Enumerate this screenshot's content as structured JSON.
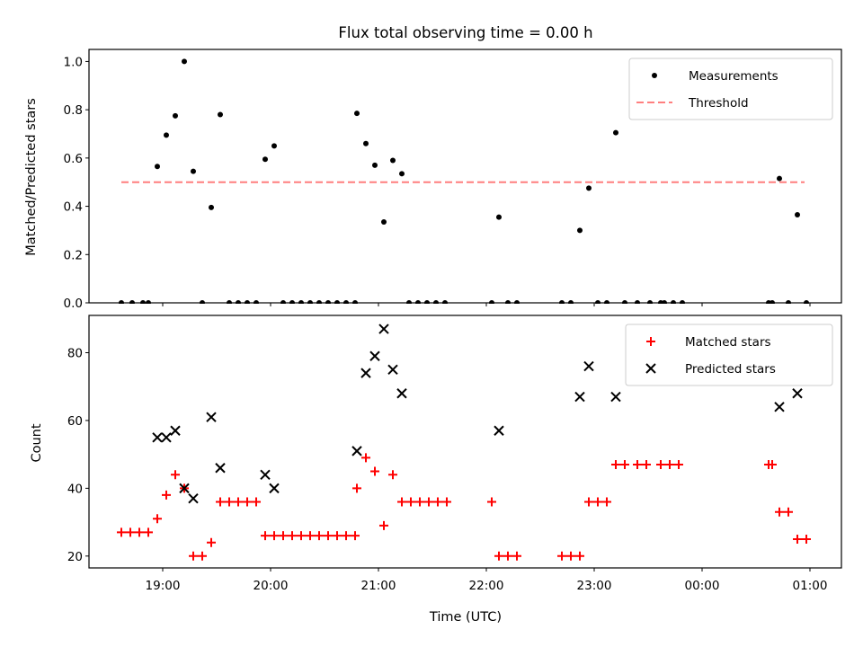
{
  "chart_data": [
    {
      "type": "scatter",
      "title": "Flux total observing time = 0.00 h",
      "xlabel": "",
      "ylabel": "Matched/Predicted stars",
      "xlim": [
        "18:15",
        "01:20"
      ],
      "ylim": [
        0,
        1.05
      ],
      "yticks": [
        0.0,
        0.2,
        0.4,
        0.6,
        0.8,
        1.0
      ],
      "ytick_labels": [
        "0.0",
        "0.2",
        "0.4",
        "0.6",
        "0.8",
        "1.0"
      ],
      "legend": "top-right",
      "series": [
        {
          "name": "Measurements",
          "kind": "points",
          "color": "#000000",
          "points": [
            [
              "18:37",
              0.0
            ],
            [
              "18:43",
              0.0
            ],
            [
              "18:49",
              0.0
            ],
            [
              "18:52",
              0.0
            ],
            [
              "18:57",
              0.565
            ],
            [
              "19:02",
              0.695
            ],
            [
              "19:07",
              0.775
            ],
            [
              "19:12",
              1.0
            ],
            [
              "19:17",
              0.545
            ],
            [
              "19:22",
              0.0
            ],
            [
              "19:27",
              0.395
            ],
            [
              "19:32",
              0.78
            ],
            [
              "19:37",
              0.0
            ],
            [
              "19:42",
              0.0
            ],
            [
              "19:47",
              0.0
            ],
            [
              "19:52",
              0.0
            ],
            [
              "19:57",
              0.595
            ],
            [
              "20:02",
              0.65
            ],
            [
              "20:07",
              0.0
            ],
            [
              "20:12",
              0.0
            ],
            [
              "20:17",
              0.0
            ],
            [
              "20:22",
              0.0
            ],
            [
              "20:27",
              0.0
            ],
            [
              "20:32",
              0.0
            ],
            [
              "20:37",
              0.0
            ],
            [
              "20:42",
              0.0
            ],
            [
              "20:47",
              0.0
            ],
            [
              "20:48",
              0.785
            ],
            [
              "20:53",
              0.66
            ],
            [
              "20:58",
              0.57
            ],
            [
              "21:03",
              0.335
            ],
            [
              "21:08",
              0.59
            ],
            [
              "21:13",
              0.535
            ],
            [
              "21:17",
              0.0
            ],
            [
              "21:22",
              0.0
            ],
            [
              "21:27",
              0.0
            ],
            [
              "21:32",
              0.0
            ],
            [
              "21:37",
              0.0
            ],
            [
              "22:03",
              0.0
            ],
            [
              "22:07",
              0.355
            ],
            [
              "22:12",
              0.0
            ],
            [
              "22:17",
              0.0
            ],
            [
              "22:42",
              0.0
            ],
            [
              "22:47",
              0.0
            ],
            [
              "22:52",
              0.3
            ],
            [
              "22:57",
              0.475
            ],
            [
              "23:02",
              0.0
            ],
            [
              "23:07",
              0.0
            ],
            [
              "23:12",
              0.705
            ],
            [
              "23:17",
              0.0
            ],
            [
              "23:24",
              0.0
            ],
            [
              "23:31",
              0.0
            ],
            [
              "23:37",
              0.0
            ],
            [
              "23:39",
              0.0
            ],
            [
              "23:44",
              0.0
            ],
            [
              "23:49",
              0.0
            ],
            [
              "00:37",
              0.0
            ],
            [
              "00:39",
              0.0
            ],
            [
              "00:43",
              0.515
            ],
            [
              "00:48",
              0.0
            ],
            [
              "00:53",
              0.365
            ],
            [
              "00:58",
              0.0
            ]
          ]
        },
        {
          "name": "Threshold",
          "kind": "dashed-line",
          "color": "#ff7f7f",
          "points": [
            [
              "18:37",
              0.5
            ],
            [
              "00:57",
              0.5
            ]
          ]
        }
      ]
    },
    {
      "type": "scatter",
      "title": "",
      "xlabel": "Time (UTC)",
      "ylabel": "Count",
      "xlim": [
        "18:15",
        "01:20"
      ],
      "ylim": [
        16.5,
        91
      ],
      "yticks": [
        20,
        40,
        60,
        80
      ],
      "ytick_labels": [
        "20",
        "40",
        "60",
        "80"
      ],
      "xticks": [
        "19:00",
        "20:00",
        "21:00",
        "22:00",
        "23:00",
        "00:00",
        "01:00"
      ],
      "xtick_labels": [
        "19:00",
        "20:00",
        "21:00",
        "22:00",
        "23:00",
        "00:00",
        "01:00"
      ],
      "legend": "top-right",
      "series": [
        {
          "name": "Matched stars",
          "kind": "plus",
          "color": "#ff0000",
          "points": [
            [
              "18:37",
              27
            ],
            [
              "18:42",
              27
            ],
            [
              "18:47",
              27
            ],
            [
              "18:52",
              27
            ],
            [
              "18:57",
              31
            ],
            [
              "19:02",
              38
            ],
            [
              "19:07",
              44
            ],
            [
              "19:12",
              40
            ],
            [
              "19:17",
              20
            ],
            [
              "19:22",
              20
            ],
            [
              "19:27",
              24
            ],
            [
              "19:32",
              36
            ],
            [
              "19:37",
              36
            ],
            [
              "19:42",
              36
            ],
            [
              "19:47",
              36
            ],
            [
              "19:52",
              36
            ],
            [
              "19:57",
              26
            ],
            [
              "20:02",
              26
            ],
            [
              "20:07",
              26
            ],
            [
              "20:12",
              26
            ],
            [
              "20:17",
              26
            ],
            [
              "20:22",
              26
            ],
            [
              "20:27",
              26
            ],
            [
              "20:32",
              26
            ],
            [
              "20:37",
              26
            ],
            [
              "20:42",
              26
            ],
            [
              "20:47",
              26
            ],
            [
              "20:48",
              40
            ],
            [
              "20:53",
              49
            ],
            [
              "20:58",
              45
            ],
            [
              "21:03",
              29
            ],
            [
              "21:08",
              44
            ],
            [
              "21:13",
              36
            ],
            [
              "21:18",
              36
            ],
            [
              "21:23",
              36
            ],
            [
              "21:28",
              36
            ],
            [
              "21:33",
              36
            ],
            [
              "21:38",
              36
            ],
            [
              "22:03",
              36
            ],
            [
              "22:07",
              20
            ],
            [
              "22:12",
              20
            ],
            [
              "22:17",
              20
            ],
            [
              "22:42",
              20
            ],
            [
              "22:47",
              20
            ],
            [
              "22:52",
              20
            ],
            [
              "22:57",
              36
            ],
            [
              "23:02",
              36
            ],
            [
              "23:07",
              36
            ],
            [
              "23:12",
              47
            ],
            [
              "23:17",
              47
            ],
            [
              "23:24",
              47
            ],
            [
              "23:29",
              47
            ],
            [
              "23:37",
              47
            ],
            [
              "23:42",
              47
            ],
            [
              "23:47",
              47
            ],
            [
              "00:37",
              47
            ],
            [
              "00:39",
              47
            ],
            [
              "00:43",
              33
            ],
            [
              "00:48",
              33
            ],
            [
              "00:53",
              25
            ],
            [
              "00:58",
              25
            ]
          ]
        },
        {
          "name": "Predicted stars",
          "kind": "x",
          "color": "#000000",
          "points": [
            [
              "18:57",
              55
            ],
            [
              "19:02",
              55
            ],
            [
              "19:07",
              57
            ],
            [
              "19:12",
              40
            ],
            [
              "19:17",
              37
            ],
            [
              "19:27",
              61
            ],
            [
              "19:32",
              46
            ],
            [
              "19:57",
              44
            ],
            [
              "20:02",
              40
            ],
            [
              "20:48",
              51
            ],
            [
              "20:53",
              74
            ],
            [
              "20:58",
              79
            ],
            [
              "21:03",
              87
            ],
            [
              "21:08",
              75
            ],
            [
              "21:13",
              68
            ],
            [
              "22:07",
              57
            ],
            [
              "22:52",
              67
            ],
            [
              "22:57",
              76
            ],
            [
              "23:12",
              67
            ],
            [
              "00:43",
              64
            ],
            [
              "00:53",
              68
            ]
          ]
        }
      ]
    }
  ]
}
